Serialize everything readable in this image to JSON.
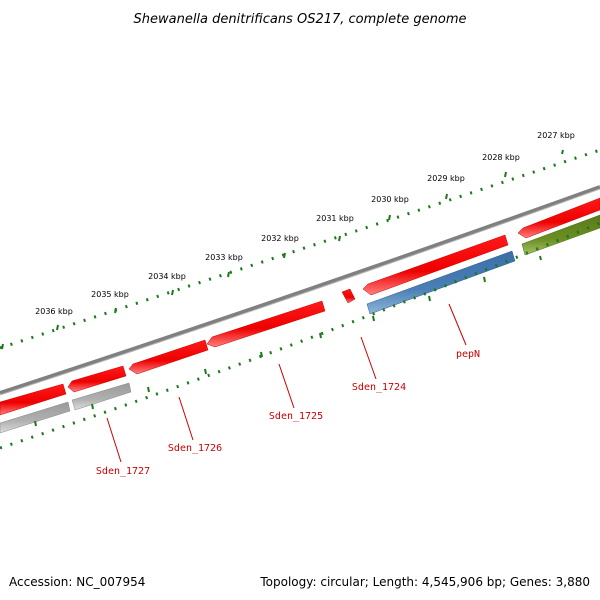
{
  "title": "Shewanella denitrificans OS217, complete genome",
  "footer": {
    "accession": "Accession: NC_007954",
    "summary": "Topology: circular; Length: 4,545,906 bp; Genes: 3,880"
  },
  "ruler": [
    "2027 kbp",
    "2028 kbp",
    "2029 kbp",
    "2030 kbp",
    "2031 kbp",
    "2032 kbp",
    "2033 kbp",
    "2034 kbp",
    "2035 kbp",
    "2036 kbp"
  ],
  "genes": [
    {
      "label": "Sden_1727"
    },
    {
      "label": "Sden_1726"
    },
    {
      "label": "Sden_1725"
    },
    {
      "label": "Sden_1724"
    },
    {
      "label": "pepN"
    }
  ],
  "colors": {
    "cds_forward": "#ff0000",
    "cds_reverse": "#4a7fb5",
    "rna": "#6b8e23",
    "other": "#b0b0b0",
    "backbone": "#808080",
    "ruler_ticks": "#1a7a1a",
    "label": "#cc0000"
  }
}
